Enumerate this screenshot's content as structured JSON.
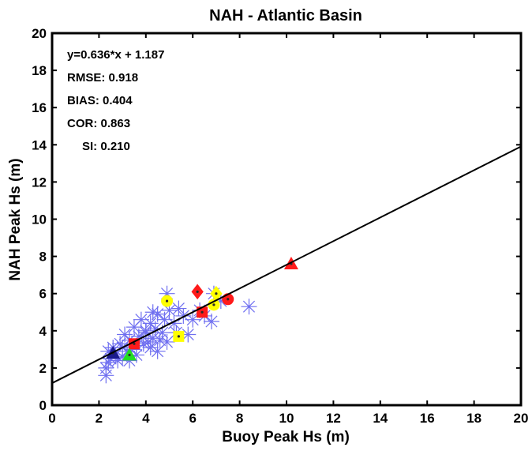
{
  "chart_data": {
    "type": "scatter",
    "title": "NAH - Atlantic Basin",
    "xlabel": "Buoy Peak Hs (m)",
    "ylabel": "NAH Peak Hs (m)",
    "xlim": [
      0,
      20
    ],
    "ylim": [
      0,
      20
    ],
    "xticks": [
      "0",
      "2",
      "4",
      "6",
      "8",
      "10",
      "12",
      "14",
      "16",
      "18",
      "20"
    ],
    "yticks": [
      "0",
      "2",
      "4",
      "6",
      "8",
      "10",
      "12",
      "14",
      "16",
      "18",
      "20"
    ],
    "grid": false,
    "stats": {
      "fit": "y=0.636*x + 1.187",
      "rmse": "RMSE: 0.918",
      "bias": "BIAS: 0.404",
      "cor": "COR: 0.863",
      "si": "SI: 0.210"
    },
    "fit_line": {
      "slope": 0.636,
      "intercept": 1.187,
      "color": "#000000"
    },
    "series": [
      {
        "marker": "asterisk",
        "color": "#6f6ff0",
        "points": [
          [
            2.3,
            1.6
          ],
          [
            2.3,
            2.0
          ],
          [
            2.4,
            2.3
          ],
          [
            2.4,
            2.9
          ],
          [
            2.5,
            2.5
          ],
          [
            2.6,
            3.1
          ],
          [
            2.7,
            2.7
          ],
          [
            2.8,
            2.4
          ],
          [
            3.0,
            3.1
          ],
          [
            3.0,
            2.6
          ],
          [
            3.2,
            2.9
          ],
          [
            3.3,
            3.5
          ],
          [
            3.4,
            3.0
          ],
          [
            3.5,
            4.2
          ],
          [
            3.6,
            2.7
          ],
          [
            3.7,
            3.7
          ],
          [
            3.8,
            4.6
          ],
          [
            3.9,
            3.3
          ],
          [
            4.0,
            3.9
          ],
          [
            4.1,
            3.4
          ],
          [
            4.2,
            4.4
          ],
          [
            4.2,
            3.1
          ],
          [
            4.3,
            3.6
          ],
          [
            4.4,
            4.1
          ],
          [
            4.5,
            2.9
          ],
          [
            4.5,
            4.9
          ],
          [
            4.6,
            3.5
          ],
          [
            4.7,
            3.9
          ],
          [
            4.8,
            4.6
          ],
          [
            4.9,
            3.4
          ],
          [
            4.9,
            6.0
          ],
          [
            5.0,
            5.1
          ],
          [
            5.2,
            4.4
          ],
          [
            5.3,
            3.9
          ],
          [
            5.4,
            5.2
          ],
          [
            5.6,
            4.8
          ],
          [
            5.8,
            3.8
          ],
          [
            6.0,
            4.6
          ],
          [
            6.3,
            5.1
          ],
          [
            6.5,
            4.8
          ],
          [
            6.8,
            4.5
          ],
          [
            6.9,
            6.0
          ],
          [
            7.2,
            5.6
          ],
          [
            8.4,
            5.3
          ],
          [
            3.3,
            2.4
          ],
          [
            2.9,
            3.3
          ],
          [
            3.6,
            3.2
          ],
          [
            4.0,
            4.0
          ],
          [
            4.3,
            5.0
          ],
          [
            3.1,
            3.8
          ]
        ]
      },
      {
        "marker": "diamond",
        "color": "#ff1a1a",
        "points": [
          [
            6.2,
            6.1
          ]
        ]
      },
      {
        "marker": "square",
        "color": "#ff1a1a",
        "points": [
          [
            3.5,
            3.3
          ],
          [
            6.4,
            5.0
          ]
        ]
      },
      {
        "marker": "circle",
        "color": "#ff1a1a",
        "points": [
          [
            7.5,
            5.7
          ]
        ]
      },
      {
        "marker": "triangle",
        "color": "#ff1a1a",
        "points": [
          [
            10.2,
            7.6
          ]
        ]
      },
      {
        "marker": "circle",
        "color": "#ffff00",
        "points": [
          [
            4.9,
            5.6
          ],
          [
            6.9,
            5.4
          ]
        ]
      },
      {
        "marker": "square",
        "color": "#ffff00",
        "points": [
          [
            5.4,
            3.7
          ]
        ]
      },
      {
        "marker": "diamond",
        "color": "#ffff00",
        "points": [
          [
            7.0,
            6.0
          ]
        ]
      },
      {
        "marker": "triangle",
        "color": "#22dd22",
        "points": [
          [
            3.3,
            2.7
          ]
        ]
      },
      {
        "marker": "triangle",
        "color": "#1a1a8c",
        "points": [
          [
            2.6,
            2.8
          ]
        ]
      }
    ]
  }
}
